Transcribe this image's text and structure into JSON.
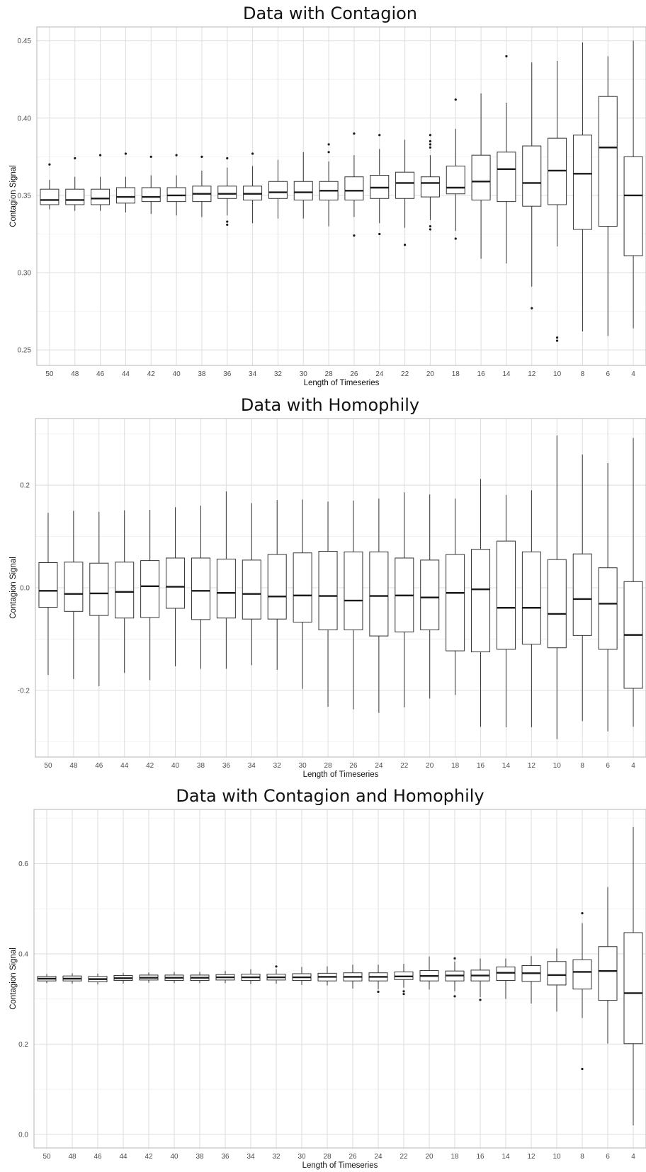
{
  "chart_data": [
    {
      "type": "boxplot",
      "title": "Data with Contagion",
      "xlabel": "Length of Timeseries",
      "ylabel": "Contagion Signal",
      "ylim": [
        0.24,
        0.459
      ],
      "yticks": [
        0.25,
        0.3,
        0.35,
        0.4,
        0.45
      ],
      "ytick_labels": [
        "0.25",
        "0.30",
        "0.35",
        "0.40",
        "0.45"
      ],
      "grid": true,
      "categories": [
        "50",
        "48",
        "46",
        "44",
        "42",
        "40",
        "38",
        "36",
        "34",
        "32",
        "30",
        "28",
        "26",
        "24",
        "22",
        "20",
        "18",
        "16",
        "14",
        "12",
        "10",
        "8",
        "6",
        "4"
      ],
      "boxes": [
        {
          "min": 0.341,
          "q1": 0.344,
          "median": 0.347,
          "q3": 0.354,
          "max": 0.36,
          "outliers": [
            0.37
          ]
        },
        {
          "min": 0.34,
          "q1": 0.344,
          "median": 0.347,
          "q3": 0.354,
          "max": 0.362,
          "outliers": [
            0.374
          ]
        },
        {
          "min": 0.34,
          "q1": 0.344,
          "median": 0.348,
          "q3": 0.354,
          "max": 0.362,
          "outliers": [
            0.376
          ]
        },
        {
          "min": 0.339,
          "q1": 0.345,
          "median": 0.349,
          "q3": 0.355,
          "max": 0.362,
          "outliers": [
            0.377
          ]
        },
        {
          "min": 0.338,
          "q1": 0.346,
          "median": 0.349,
          "q3": 0.355,
          "max": 0.363,
          "outliers": [
            0.375
          ]
        },
        {
          "min": 0.337,
          "q1": 0.346,
          "median": 0.35,
          "q3": 0.355,
          "max": 0.363,
          "outliers": [
            0.376
          ]
        },
        {
          "min": 0.336,
          "q1": 0.346,
          "median": 0.351,
          "q3": 0.356,
          "max": 0.366,
          "outliers": [
            0.375
          ]
        },
        {
          "min": 0.337,
          "q1": 0.348,
          "median": 0.351,
          "q3": 0.356,
          "max": 0.368,
          "outliers": [
            0.374,
            0.333,
            0.331
          ]
        },
        {
          "min": 0.332,
          "q1": 0.347,
          "median": 0.351,
          "q3": 0.356,
          "max": 0.369,
          "outliers": [
            0.377
          ]
        },
        {
          "min": 0.335,
          "q1": 0.348,
          "median": 0.352,
          "q3": 0.359,
          "max": 0.373,
          "outliers": []
        },
        {
          "min": 0.335,
          "q1": 0.347,
          "median": 0.352,
          "q3": 0.359,
          "max": 0.378,
          "outliers": []
        },
        {
          "min": 0.33,
          "q1": 0.347,
          "median": 0.353,
          "q3": 0.359,
          "max": 0.372,
          "outliers": [
            0.383,
            0.378
          ]
        },
        {
          "min": 0.336,
          "q1": 0.347,
          "median": 0.353,
          "q3": 0.362,
          "max": 0.376,
          "outliers": [
            0.39,
            0.324
          ]
        },
        {
          "min": 0.332,
          "q1": 0.348,
          "median": 0.355,
          "q3": 0.363,
          "max": 0.38,
          "outliers": [
            0.389,
            0.325
          ]
        },
        {
          "min": 0.329,
          "q1": 0.348,
          "median": 0.358,
          "q3": 0.365,
          "max": 0.386,
          "outliers": [
            0.318
          ]
        },
        {
          "min": 0.334,
          "q1": 0.349,
          "median": 0.358,
          "q3": 0.362,
          "max": 0.376,
          "outliers": [
            0.389,
            0.385,
            0.383,
            0.381,
            0.33,
            0.328
          ]
        },
        {
          "min": 0.327,
          "q1": 0.351,
          "median": 0.355,
          "q3": 0.369,
          "max": 0.393,
          "outliers": [
            0.412,
            0.322
          ]
        },
        {
          "min": 0.309,
          "q1": 0.347,
          "median": 0.359,
          "q3": 0.376,
          "max": 0.416,
          "outliers": []
        },
        {
          "min": 0.306,
          "q1": 0.346,
          "median": 0.367,
          "q3": 0.378,
          "max": 0.41,
          "outliers": [
            0.44
          ]
        },
        {
          "min": 0.291,
          "q1": 0.343,
          "median": 0.358,
          "q3": 0.382,
          "max": 0.436,
          "outliers": [
            0.277
          ]
        },
        {
          "min": 0.317,
          "q1": 0.344,
          "median": 0.366,
          "q3": 0.387,
          "max": 0.437,
          "outliers": [
            0.258,
            0.256
          ]
        },
        {
          "min": 0.262,
          "q1": 0.328,
          "median": 0.364,
          "q3": 0.389,
          "max": 0.449,
          "outliers": []
        },
        {
          "min": 0.259,
          "q1": 0.33,
          "median": 0.381,
          "q3": 0.414,
          "max": 0.44,
          "outliers": []
        },
        {
          "min": 0.264,
          "q1": 0.311,
          "median": 0.35,
          "q3": 0.375,
          "max": 0.45,
          "outliers": []
        }
      ]
    },
    {
      "type": "boxplot",
      "title": "Data with Homophily",
      "xlabel": "Length of Timeseries",
      "ylabel": "Contagion Signal",
      "ylim": [
        -0.33,
        0.33
      ],
      "yticks": [
        -0.2,
        0.0,
        0.2
      ],
      "ytick_labels": [
        "-0.2",
        "0.0",
        "0.2"
      ],
      "grid": true,
      "categories": [
        "50",
        "48",
        "46",
        "44",
        "42",
        "40",
        "38",
        "36",
        "34",
        "32",
        "30",
        "28",
        "26",
        "24",
        "22",
        "20",
        "18",
        "16",
        "14",
        "12",
        "10",
        "8",
        "6",
        "4"
      ],
      "boxes": [
        {
          "min": -0.17,
          "q1": -0.038,
          "median": -0.006,
          "q3": 0.049,
          "max": 0.146,
          "outliers": []
        },
        {
          "min": -0.178,
          "q1": -0.046,
          "median": -0.012,
          "q3": 0.05,
          "max": 0.15,
          "outliers": []
        },
        {
          "min": -0.192,
          "q1": -0.054,
          "median": -0.011,
          "q3": 0.048,
          "max": 0.148,
          "outliers": []
        },
        {
          "min": -0.166,
          "q1": -0.059,
          "median": -0.008,
          "q3": 0.05,
          "max": 0.151,
          "outliers": []
        },
        {
          "min": -0.18,
          "q1": -0.058,
          "median": 0.003,
          "q3": 0.053,
          "max": 0.152,
          "outliers": []
        },
        {
          "min": -0.153,
          "q1": -0.04,
          "median": 0.002,
          "q3": 0.058,
          "max": 0.157,
          "outliers": []
        },
        {
          "min": -0.158,
          "q1": -0.062,
          "median": -0.006,
          "q3": 0.058,
          "max": 0.16,
          "outliers": []
        },
        {
          "min": -0.158,
          "q1": -0.059,
          "median": -0.01,
          "q3": 0.056,
          "max": 0.188,
          "outliers": []
        },
        {
          "min": -0.151,
          "q1": -0.061,
          "median": -0.012,
          "q3": 0.054,
          "max": 0.165,
          "outliers": []
        },
        {
          "min": -0.16,
          "q1": -0.061,
          "median": -0.017,
          "q3": 0.065,
          "max": 0.171,
          "outliers": []
        },
        {
          "min": -0.197,
          "q1": -0.067,
          "median": -0.015,
          "q3": 0.068,
          "max": 0.172,
          "outliers": []
        },
        {
          "min": -0.232,
          "q1": -0.082,
          "median": -0.016,
          "q3": 0.071,
          "max": 0.168,
          "outliers": []
        },
        {
          "min": -0.237,
          "q1": -0.082,
          "median": -0.025,
          "q3": 0.07,
          "max": 0.17,
          "outliers": []
        },
        {
          "min": -0.244,
          "q1": -0.094,
          "median": -0.016,
          "q3": 0.07,
          "max": 0.174,
          "outliers": []
        },
        {
          "min": -0.233,
          "q1": -0.086,
          "median": -0.015,
          "q3": 0.058,
          "max": 0.186,
          "outliers": []
        },
        {
          "min": -0.216,
          "q1": -0.082,
          "median": -0.019,
          "q3": 0.054,
          "max": 0.182,
          "outliers": []
        },
        {
          "min": -0.209,
          "q1": -0.123,
          "median": -0.01,
          "q3": 0.065,
          "max": 0.174,
          "outliers": []
        },
        {
          "min": -0.271,
          "q1": -0.125,
          "median": -0.003,
          "q3": 0.075,
          "max": 0.212,
          "outliers": []
        },
        {
          "min": -0.272,
          "q1": -0.12,
          "median": -0.039,
          "q3": 0.091,
          "max": 0.181,
          "outliers": []
        },
        {
          "min": -0.272,
          "q1": -0.11,
          "median": -0.039,
          "q3": 0.07,
          "max": 0.19,
          "outliers": []
        },
        {
          "min": -0.295,
          "q1": -0.117,
          "median": -0.051,
          "q3": 0.055,
          "max": 0.297,
          "outliers": []
        },
        {
          "min": -0.26,
          "q1": -0.093,
          "median": -0.022,
          "q3": 0.066,
          "max": 0.26,
          "outliers": []
        },
        {
          "min": -0.28,
          "q1": -0.12,
          "median": -0.031,
          "q3": 0.039,
          "max": 0.243,
          "outliers": []
        },
        {
          "min": -0.271,
          "q1": -0.196,
          "median": -0.092,
          "q3": 0.012,
          "max": 0.292,
          "outliers": []
        }
      ]
    },
    {
      "type": "boxplot",
      "title": "Data with Contagion and Homophily",
      "xlabel": "Length of Timeseries",
      "ylabel": "Contagion Signal",
      "ylim": [
        -0.03,
        0.72
      ],
      "yticks": [
        0.0,
        0.2,
        0.4,
        0.6
      ],
      "ytick_labels": [
        "0.0",
        "0.2",
        "0.4",
        "0.6"
      ],
      "grid": true,
      "categories": [
        "50",
        "48",
        "46",
        "44",
        "42",
        "40",
        "38",
        "36",
        "34",
        "32",
        "30",
        "28",
        "26",
        "24",
        "22",
        "20",
        "18",
        "16",
        "14",
        "12",
        "10",
        "8",
        "6",
        "4"
      ],
      "boxes": [
        {
          "min": 0.335,
          "q1": 0.34,
          "median": 0.345,
          "q3": 0.35,
          "max": 0.355,
          "outliers": []
        },
        {
          "min": 0.334,
          "q1": 0.34,
          "median": 0.345,
          "q3": 0.351,
          "max": 0.357,
          "outliers": []
        },
        {
          "min": 0.332,
          "q1": 0.338,
          "median": 0.344,
          "q3": 0.35,
          "max": 0.356,
          "outliers": []
        },
        {
          "min": 0.334,
          "q1": 0.341,
          "median": 0.346,
          "q3": 0.352,
          "max": 0.358,
          "outliers": []
        },
        {
          "min": 0.336,
          "q1": 0.342,
          "median": 0.347,
          "q3": 0.353,
          "max": 0.359,
          "outliers": []
        },
        {
          "min": 0.335,
          "q1": 0.341,
          "median": 0.347,
          "q3": 0.353,
          "max": 0.36,
          "outliers": []
        },
        {
          "min": 0.335,
          "q1": 0.341,
          "median": 0.347,
          "q3": 0.353,
          "max": 0.36,
          "outliers": []
        },
        {
          "min": 0.335,
          "q1": 0.342,
          "median": 0.348,
          "q3": 0.354,
          "max": 0.362,
          "outliers": []
        },
        {
          "min": 0.333,
          "q1": 0.341,
          "median": 0.348,
          "q3": 0.355,
          "max": 0.366,
          "outliers": []
        },
        {
          "min": 0.334,
          "q1": 0.342,
          "median": 0.348,
          "q3": 0.355,
          "max": 0.366,
          "outliers": [
            0.372
          ]
        },
        {
          "min": 0.331,
          "q1": 0.341,
          "median": 0.348,
          "q3": 0.356,
          "max": 0.371,
          "outliers": []
        },
        {
          "min": 0.33,
          "q1": 0.34,
          "median": 0.349,
          "q3": 0.357,
          "max": 0.372,
          "outliers": []
        },
        {
          "min": 0.323,
          "q1": 0.34,
          "median": 0.349,
          "q3": 0.358,
          "max": 0.376,
          "outliers": []
        },
        {
          "min": 0.321,
          "q1": 0.34,
          "median": 0.349,
          "q3": 0.358,
          "max": 0.376,
          "outliers": [
            0.316
          ]
        },
        {
          "min": 0.325,
          "q1": 0.343,
          "median": 0.35,
          "q3": 0.36,
          "max": 0.378,
          "outliers": [
            0.317,
            0.311
          ]
        },
        {
          "min": 0.321,
          "q1": 0.34,
          "median": 0.351,
          "q3": 0.363,
          "max": 0.394,
          "outliers": []
        },
        {
          "min": 0.317,
          "q1": 0.34,
          "median": 0.352,
          "q3": 0.362,
          "max": 0.383,
          "outliers": [
            0.39,
            0.306
          ]
        },
        {
          "min": 0.304,
          "q1": 0.34,
          "median": 0.352,
          "q3": 0.364,
          "max": 0.39,
          "outliers": [
            0.298
          ]
        },
        {
          "min": 0.3,
          "q1": 0.341,
          "median": 0.358,
          "q3": 0.371,
          "max": 0.39,
          "outliers": []
        },
        {
          "min": 0.29,
          "q1": 0.339,
          "median": 0.357,
          "q3": 0.374,
          "max": 0.395,
          "outliers": []
        },
        {
          "min": 0.272,
          "q1": 0.331,
          "median": 0.353,
          "q3": 0.383,
          "max": 0.412,
          "outliers": []
        },
        {
          "min": 0.258,
          "q1": 0.322,
          "median": 0.36,
          "q3": 0.387,
          "max": 0.468,
          "outliers": [
            0.49,
            0.145
          ]
        },
        {
          "min": 0.201,
          "q1": 0.297,
          "median": 0.362,
          "q3": 0.416,
          "max": 0.548,
          "outliers": []
        },
        {
          "min": 0.02,
          "q1": 0.201,
          "median": 0.313,
          "q3": 0.447,
          "max": 0.681,
          "outliers": []
        }
      ]
    }
  ]
}
